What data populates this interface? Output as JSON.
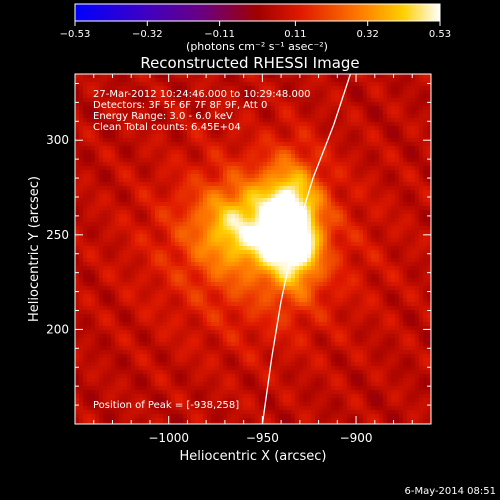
{
  "chart_data": {
    "type": "heatmap",
    "title": "Reconstructed RHESSI Image",
    "xlabel": "Heliocentric X (arcsec)",
    "ylabel": "Heliocentric Y (arcsec)",
    "xlim": [
      -1050,
      -860
    ],
    "ylim": [
      150,
      335
    ],
    "x_ticks": [
      -1000,
      -950,
      -900
    ],
    "x_tick_labels": [
      "−1000",
      "−950",
      "−900"
    ],
    "y_ticks": [
      200,
      250,
      300
    ],
    "y_tick_labels": [
      "200",
      "250",
      "300"
    ],
    "colorbar": {
      "ticks": [
        -0.53,
        -0.32,
        -0.11,
        0.11,
        0.32,
        0.53
      ],
      "tick_labels": [
        "−0.53",
        "−0.32",
        "−0.11",
        "0.11",
        "0.32",
        "0.53"
      ],
      "units_label": "(photons cm⁻² s⁻¹ asec⁻²)",
      "colors": [
        "#0000ff",
        "#5a00a0",
        "#b00000",
        "#ff4400",
        "#ffaa00",
        "#ffffff"
      ]
    },
    "annotations": [
      "27-Mar-2012 10:24:46.000 to 10:29:48.000",
      "Detectors: 3F 5F 6F 7F 8F 9F, Att 0",
      "Energy Range: 3.0 - 6.0 keV",
      "Clean    Total counts: 6.45E+04"
    ],
    "peak_label": "Position of Peak = [-938,258]",
    "peak": {
      "x": -938,
      "y": 258
    },
    "sources": [
      {
        "x": -935,
        "y": 257,
        "sx": 11,
        "sy": 21,
        "amp": 0.44
      },
      {
        "x": -962,
        "y": 254,
        "sx": 17,
        "sy": 16,
        "amp": 0.28
      },
      {
        "x": -955,
        "y": 243,
        "sx": 40,
        "sy": 34,
        "amp": 0.15
      },
      {
        "x": -930,
        "y": 240,
        "sx": 8,
        "sy": 12,
        "amp": 0.12
      }
    ],
    "background_level": 0.05,
    "limb": [
      [
        -950,
        150
      ],
      [
        -945,
        185
      ],
      [
        -940,
        215
      ],
      [
        -933,
        247
      ],
      [
        -923,
        280
      ],
      [
        -912,
        308
      ],
      [
        -903,
        335
      ]
    ],
    "limb_color": "#ffffff"
  },
  "footer": {
    "date": "6-May-2014 08:51"
  }
}
